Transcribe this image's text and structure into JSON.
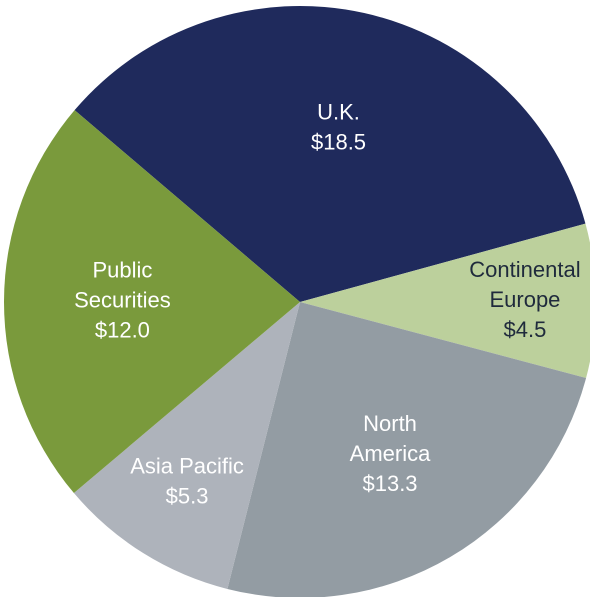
{
  "chart_data": {
    "type": "pie",
    "categories": [
      "U.K.",
      "Continental\nEurope",
      "North\nAmerica",
      "Asia Pacific",
      "Public\nSecurities"
    ],
    "values": [
      18.5,
      4.5,
      13.3,
      5.3,
      12.0
    ],
    "value_labels": [
      "$18.5",
      "$4.5",
      "$13.3",
      "$5.3",
      "$12.0"
    ],
    "colors": [
      "#1f2a5c",
      "#bcd09c",
      "#939ca3",
      "#aeb3bb",
      "#7a9a3c"
    ]
  }
}
